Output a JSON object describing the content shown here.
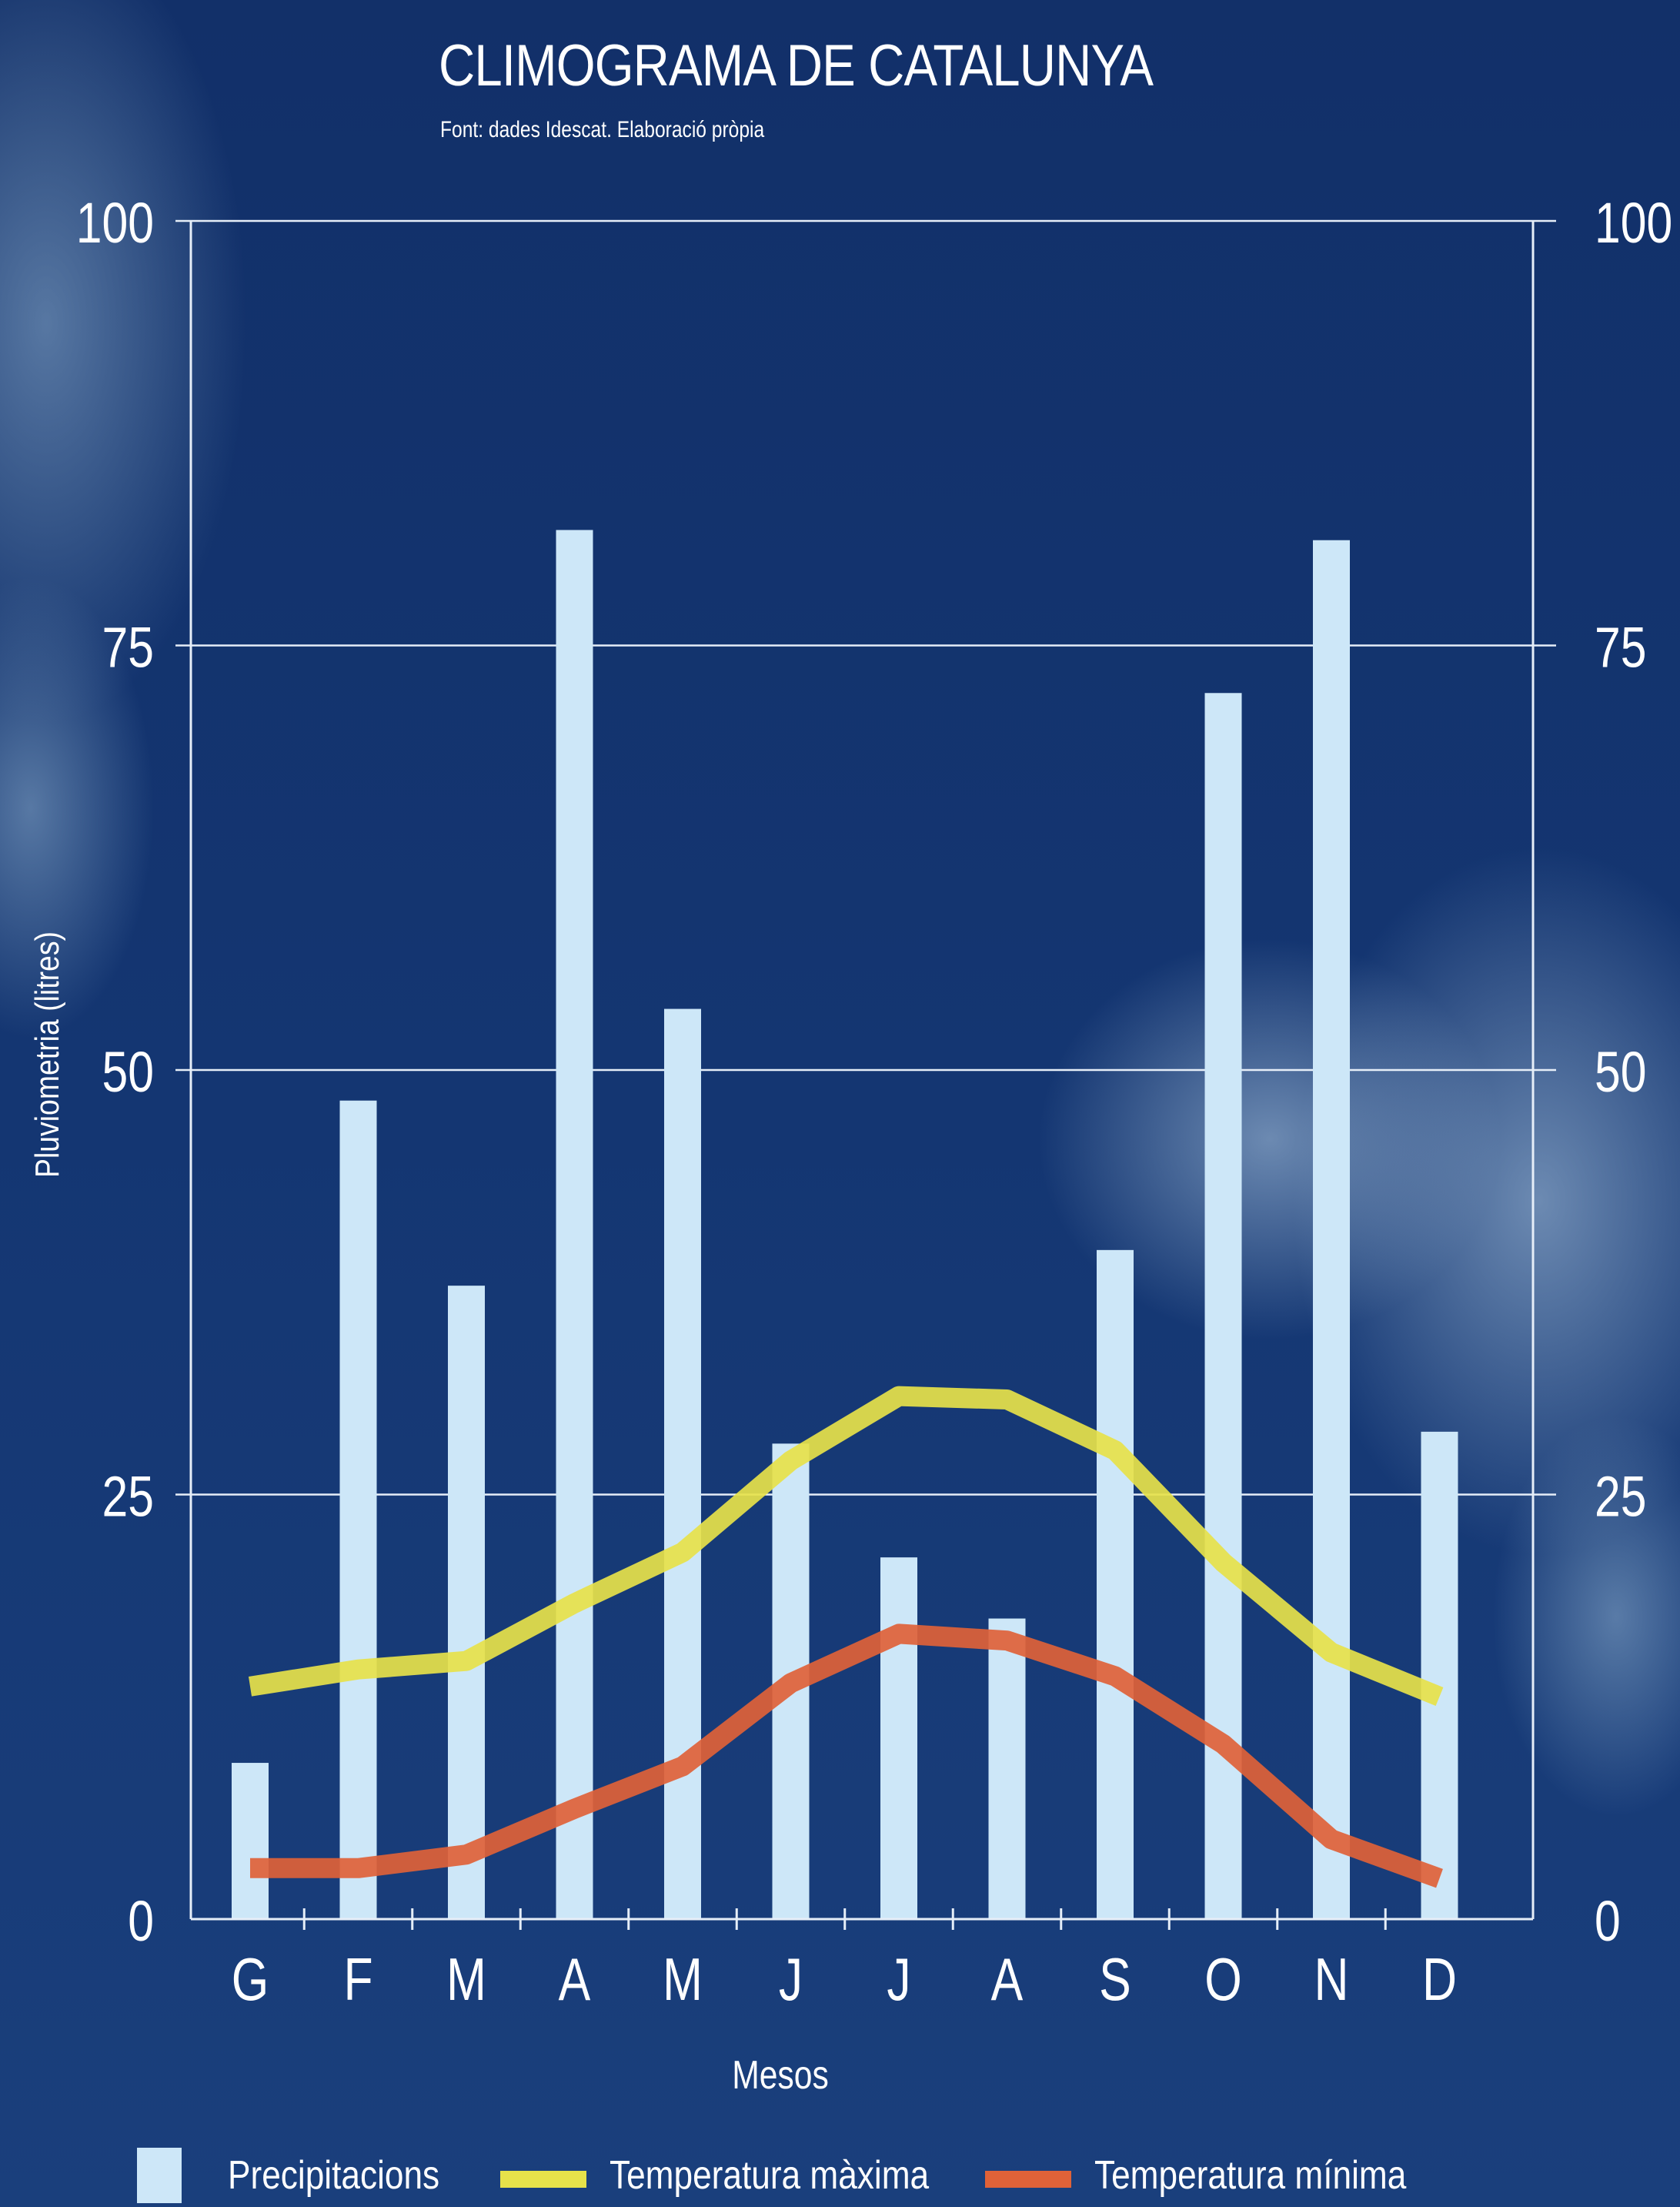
{
  "header": {
    "title": "CLIMOGRAMA DE CATALUNYA",
    "subtitle": "Font: dades Idescat. Elaboració pròpia"
  },
  "chart_data": {
    "type": "bar",
    "title": "CLIMOGRAMA DE CATALUNYA",
    "subtitle": "Font: dades Idescat. Elaboració pròpia",
    "categories": [
      "G",
      "F",
      "M",
      "A",
      "M",
      "J",
      "J",
      "A",
      "S",
      "O",
      "N",
      "D"
    ],
    "xlabel": "Mesos",
    "ylabel": "Pluviometria (litres)",
    "ylim": [
      0,
      100
    ],
    "yticks": [
      0,
      25,
      50,
      75,
      100
    ],
    "y2lim": [
      0,
      100
    ],
    "y2ticks": [
      0,
      25,
      50,
      75,
      100
    ],
    "grid": true,
    "legend_position": "bottom",
    "series": [
      {
        "name": "Precipitacions",
        "type": "bar",
        "color": "#cde7f8",
        "values": [
          9.2,
          48.2,
          37.3,
          81.8,
          53.6,
          28.0,
          21.3,
          17.7,
          39.4,
          72.2,
          81.2,
          28.7
        ]
      },
      {
        "name": "Temperatura màxima",
        "type": "line",
        "color": "#e7e24a",
        "values": [
          13.7,
          14.7,
          15.2,
          18.6,
          21.6,
          27.0,
          30.8,
          30.6,
          27.6,
          21.0,
          15.7,
          13.1
        ]
      },
      {
        "name": "Temperatura mínima",
        "type": "line",
        "color": "#e06238",
        "values": [
          3.0,
          3.0,
          3.8,
          6.5,
          9.0,
          13.9,
          16.8,
          16.4,
          14.3,
          10.3,
          4.7,
          2.4
        ]
      }
    ]
  }
}
